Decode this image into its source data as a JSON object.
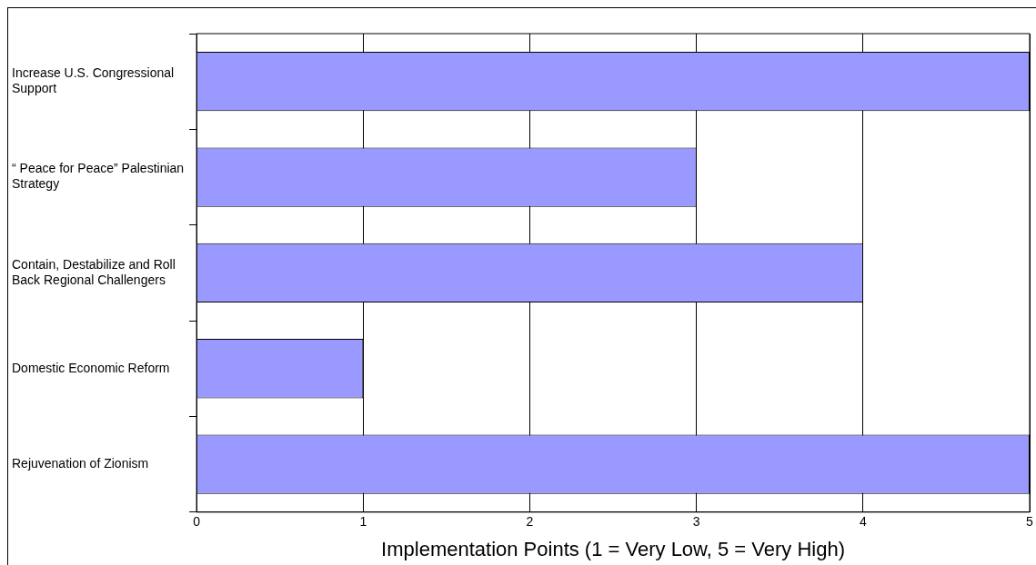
{
  "chart_data": {
    "type": "bar",
    "orientation": "horizontal",
    "xlabel": "Implementation Points (1 = Very Low, 5 = Very High)",
    "categories": [
      "Increase U.S. Congressional Support",
      "“ Peace for Peace” Palestinian Strategy",
      "Contain, Destabilize and Roll Back Regional Challengers",
      "Domestic Economic Reform",
      "Rejuvenation of Zionism"
    ],
    "values": [
      5,
      3,
      4,
      1,
      5
    ],
    "color": "#9999ff",
    "xlim": [
      0,
      5
    ],
    "xticks": [
      0,
      1,
      2,
      3,
      4,
      5
    ],
    "grid": "x",
    "legend": false
  }
}
